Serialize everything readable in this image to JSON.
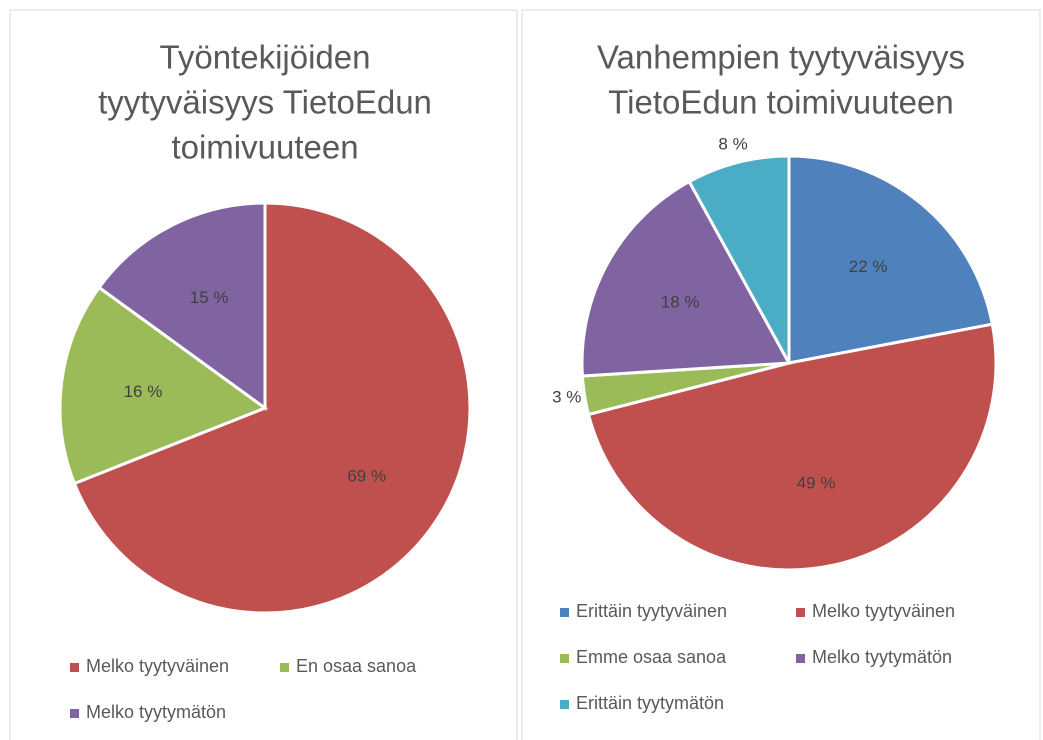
{
  "chart_data": [
    {
      "type": "pie",
      "title": [
        "Työntekijöiden",
        "tyytyväisyys TietoEdun",
        "toimivuuteen"
      ],
      "categories": [
        "Melko tyytyväinen",
        "En osaa sanoa",
        "Melko tyytymätön"
      ],
      "values": [
        69,
        16,
        15
      ],
      "value_labels": [
        "69 %",
        "16 %",
        "15 %"
      ],
      "colors": [
        "#c0504d",
        "#9bbb59",
        "#8064a2"
      ],
      "legend": "bottom"
    },
    {
      "type": "pie",
      "title": [
        "Vanhempien tyytyväisyys",
        "TietoEdun toimivuuteen"
      ],
      "categories": [
        "Erittäin tyytyväinen",
        "Melko tyytyväinen",
        "Emme osaa sanoa",
        "Melko tyytymätön",
        "Erittäin tyytymätön"
      ],
      "values": [
        22,
        49,
        3,
        18,
        8
      ],
      "value_labels": [
        "22 %",
        "49 %",
        "3 %",
        "18 %",
        "8 %"
      ],
      "colors": [
        "#4f81bd",
        "#c0504d",
        "#9bbb59",
        "#8064a2",
        "#4bacc6"
      ],
      "legend": "bottom"
    }
  ]
}
